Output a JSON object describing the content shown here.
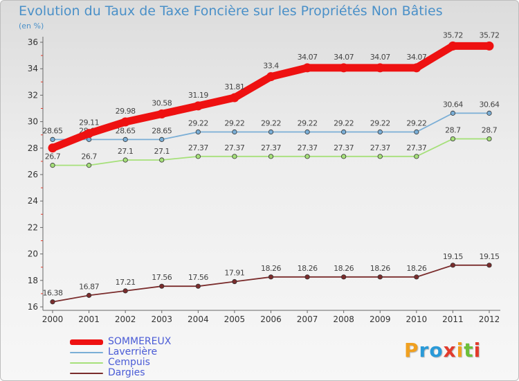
{
  "title": "Evolution du Taux de Taxe Foncière sur les Propriétés Non Bâties",
  "unit": "(en %)",
  "brand": {
    "letters": [
      "P",
      "r",
      "o",
      "x",
      "i",
      "t",
      "i"
    ],
    "colors": [
      "#f0a020",
      "#2a9ad8",
      "#2a9ad8",
      "#e23b2c",
      "#f0a020",
      "#6cbf3a",
      "#e23b2c"
    ]
  },
  "chart_data": {
    "type": "line",
    "x": [
      "2000",
      "2001",
      "2002",
      "2003",
      "2004",
      "2005",
      "2006",
      "2007",
      "2008",
      "2009",
      "2010",
      "2011",
      "2012"
    ],
    "ylim": [
      16,
      36
    ],
    "yticks": [
      16,
      18,
      20,
      22,
      24,
      26,
      28,
      30,
      32,
      34,
      36
    ],
    "grid": false,
    "legend_placement": "bottom-left",
    "series": [
      {
        "name": "SOMMEREUX",
        "color": "#ee1111",
        "values": [
          28.01,
          29.11,
          29.98,
          30.58,
          31.19,
          31.81,
          33.4,
          34.07,
          34.07,
          34.07,
          34.07,
          35.72,
          35.72
        ],
        "labels": [
          "",
          "29.11",
          "29.98",
          "30.58",
          "31.19",
          "31.81",
          "33.4",
          "34.07",
          "34.07",
          "34.07",
          "34.07",
          "35.72",
          "35.72"
        ]
      },
      {
        "name": "Laverrière",
        "color": "#7aaed6",
        "values": [
          28.65,
          28.65,
          28.65,
          28.65,
          29.22,
          29.22,
          29.22,
          29.22,
          29.22,
          29.22,
          29.22,
          30.64,
          30.64
        ],
        "labels": [
          "28.65",
          "28.65",
          "28.65",
          "28.65",
          "29.22",
          "29.22",
          "29.22",
          "29.22",
          "29.22",
          "29.22",
          "29.22",
          "30.64",
          "30.64"
        ]
      },
      {
        "name": "Cempuis",
        "color": "#a6e07a",
        "values": [
          26.7,
          26.7,
          27.1,
          27.1,
          27.37,
          27.37,
          27.37,
          27.37,
          27.37,
          27.37,
          27.37,
          28.7,
          28.7
        ],
        "labels": [
          "26.7",
          "26.7",
          "27.1",
          "27.1",
          "27.37",
          "27.37",
          "27.37",
          "27.37",
          "27.37",
          "27.37",
          "27.37",
          "28.7",
          "28.7"
        ]
      },
      {
        "name": "Dargies",
        "color": "#7a2c2c",
        "values": [
          16.38,
          16.87,
          17.21,
          17.56,
          17.56,
          17.91,
          18.26,
          18.26,
          18.26,
          18.26,
          18.26,
          19.15,
          19.15
        ],
        "labels": [
          "16.38",
          "16.87",
          "17.21",
          "17.56",
          "17.56",
          "17.91",
          "18.26",
          "18.26",
          "18.26",
          "18.26",
          "18.26",
          "19.15",
          "19.15"
        ]
      }
    ]
  }
}
